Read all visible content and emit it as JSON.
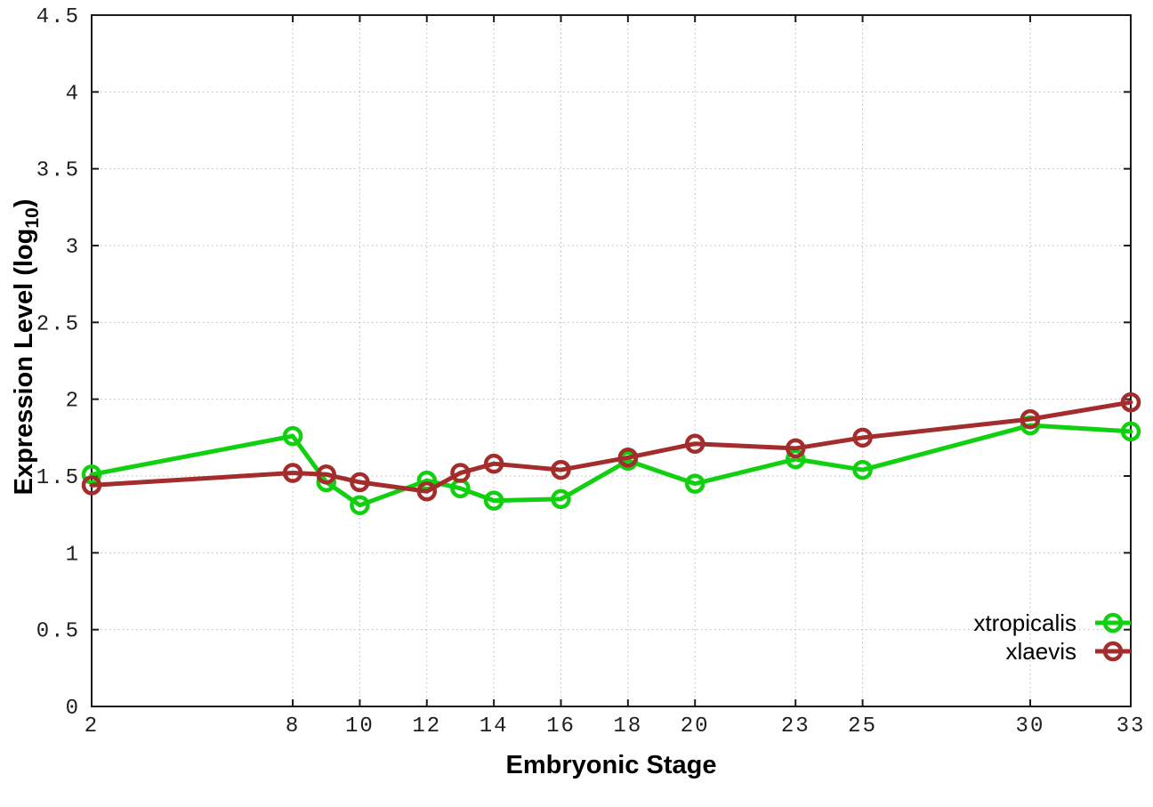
{
  "chart_data": {
    "type": "line",
    "title": "",
    "xlabel": "Embryonic Stage",
    "ylabel": "Expression Level (log10)",
    "ylabel_main": "Expression Level (log",
    "ylabel_sub": "10",
    "ylabel_close": ")",
    "xlim": [
      2,
      33
    ],
    "ylim": [
      0,
      4.5
    ],
    "grid": true,
    "legend_position": "bottom-right-inside",
    "x_ticks": [
      2,
      8,
      10,
      12,
      14,
      16,
      18,
      20,
      23,
      25,
      30,
      33
    ],
    "y_ticks": [
      0,
      0.5,
      1,
      1.5,
      2,
      2.5,
      3,
      3.5,
      4,
      4.5
    ],
    "y_tick_labels": [
      "0",
      "0.5",
      "1",
      "1.5",
      "2",
      "2.5",
      "3",
      "3.5",
      "4",
      "4.5"
    ],
    "x": [
      2,
      8,
      9,
      10,
      12,
      13,
      14,
      16,
      18,
      20,
      23,
      25,
      30,
      33
    ],
    "series": [
      {
        "name": "xtropicalis",
        "color": "#10d010",
        "marker": "open-circle",
        "values": [
          1.51,
          1.76,
          1.46,
          1.31,
          1.47,
          1.42,
          1.34,
          1.35,
          1.6,
          1.45,
          1.61,
          1.54,
          1.83,
          1.79
        ]
      },
      {
        "name": "xlaevis",
        "color": "#a32c2c",
        "marker": "open-circle",
        "values": [
          1.44,
          1.52,
          1.51,
          1.46,
          1.4,
          1.52,
          1.58,
          1.54,
          1.62,
          1.71,
          1.68,
          1.75,
          1.87,
          1.98
        ]
      }
    ],
    "colors": {
      "grid": "#b8b8b8",
      "axis": "#1a1a1a",
      "background": "#ffffff"
    }
  }
}
